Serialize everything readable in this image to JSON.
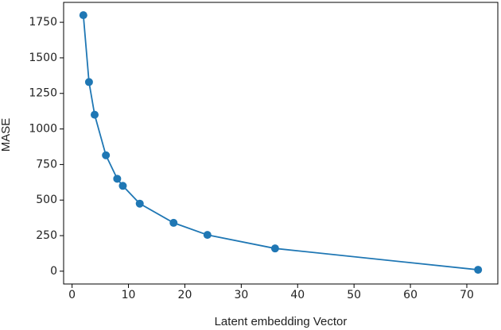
{
  "chart_data": {
    "type": "line",
    "x_label": "Latent embedding Vector",
    "y_label": "MASE",
    "x": [
      2,
      3,
      4,
      6,
      8,
      9,
      12,
      18,
      24,
      36,
      72
    ],
    "series": [
      {
        "color": "#1f77b4",
        "values": [
          1800,
          1330,
          1100,
          815,
          650,
          600,
          475,
          340,
          255,
          160,
          10
        ]
      }
    ],
    "xlim": [
      -1.5,
      75.5
    ],
    "xticks": [
      0,
      10,
      20,
      30,
      40,
      50,
      60,
      70
    ],
    "ylim": [
      -90,
      1890
    ],
    "yticks": [
      0,
      250,
      500,
      750,
      1000,
      1250,
      1500,
      1750
    ],
    "markers": true,
    "grid": false
  }
}
